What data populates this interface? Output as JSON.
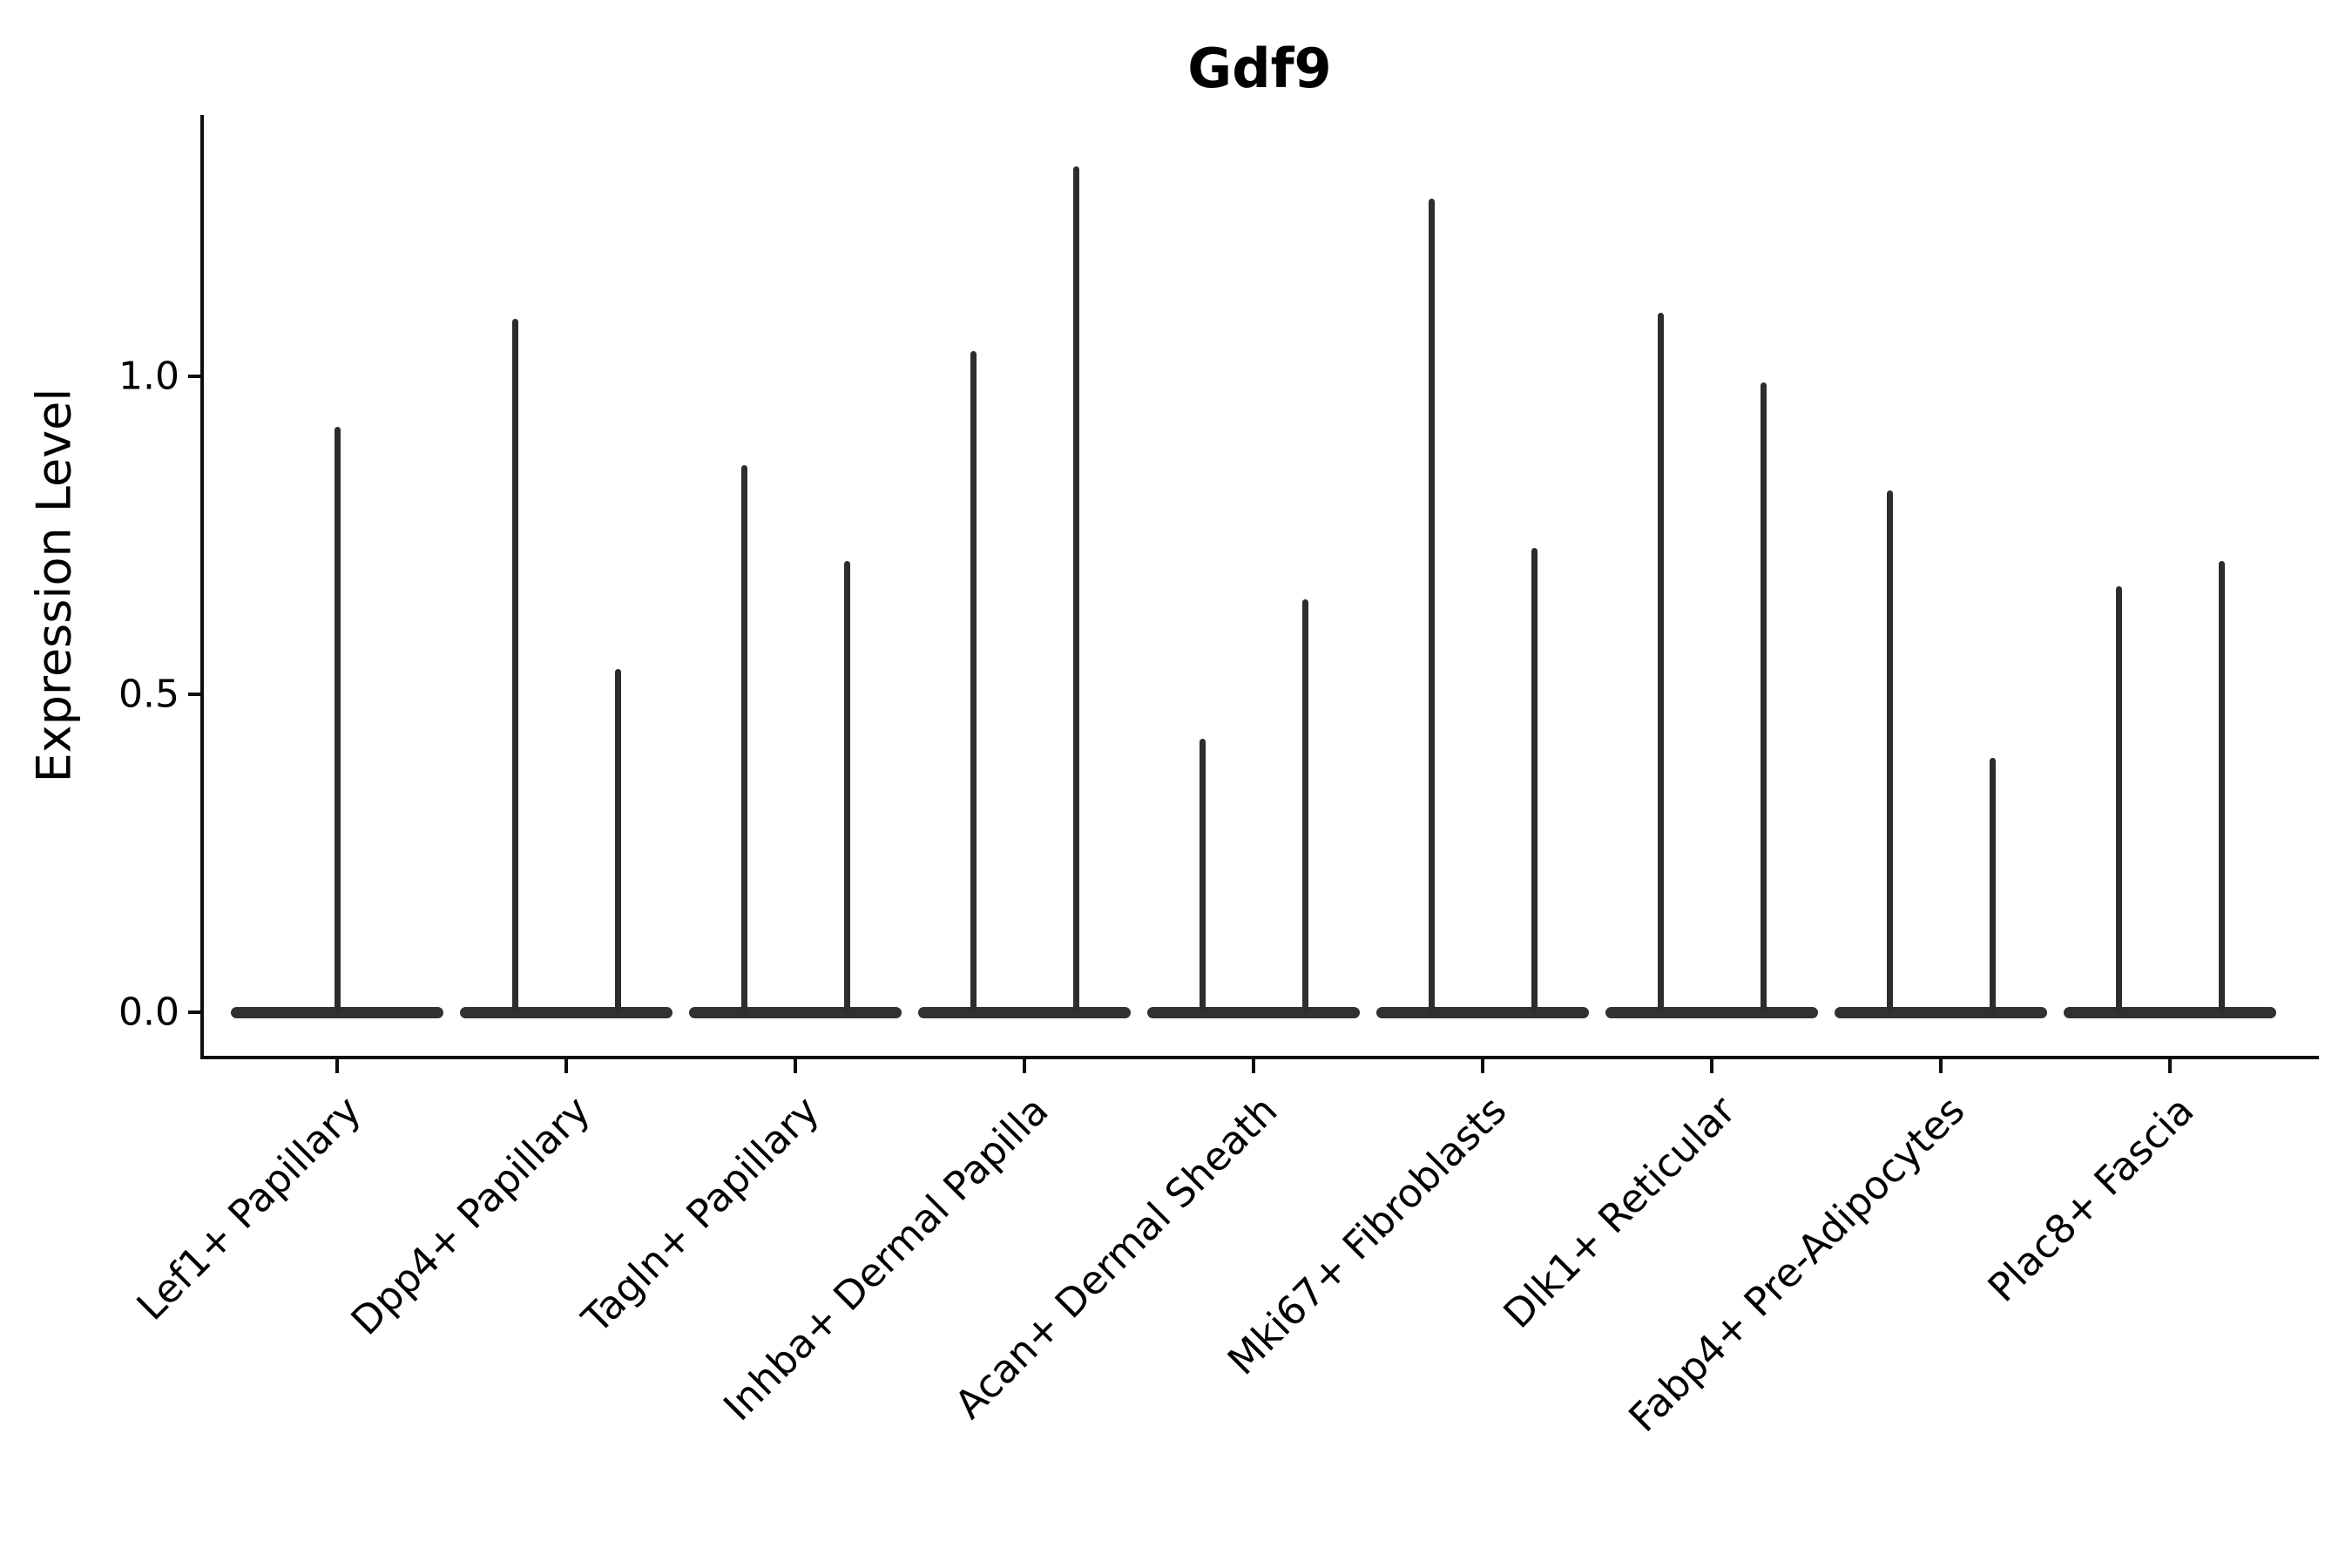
{
  "title": "Gdf9",
  "y_axis": {
    "label": "Expression Level",
    "tick_labels": [
      "0.0",
      "0.5",
      "1.0"
    ]
  },
  "colors": {
    "violin_fill": "#2d2d2d",
    "axis": "#0e0e0e",
    "text": "#000000",
    "background": "#ffffff"
  },
  "chart_data": {
    "type": "violin",
    "title": "Gdf9",
    "xlabel": "",
    "ylabel": "Expression Level",
    "yticks": [
      0.0,
      0.5,
      1.0
    ],
    "ylim": [
      -0.07,
      1.41
    ],
    "grid": false,
    "legend": "none",
    "description": "Violin plot of Gdf9 expression; distributions are concentrated at 0 with thin spikes reaching each group's maximum. Most categories show two adjacent violins (two spikes); the first category shows one.",
    "categories": [
      "Lef1+ Papillary",
      "Dpp4+ Papillary",
      "Tagln+ Papillary",
      "Inhba+ Dermal Papilla",
      "Acan+ Dermal Sheath",
      "Mki67+ Fibroblasts",
      "Dlk1+ Reticular",
      "Fabp4+ Pre-Adipocytes",
      "Plac8+ Fascia"
    ],
    "violin_max_values": [
      [
        0.92
      ],
      [
        1.09,
        0.54
      ],
      [
        0.86,
        0.71
      ],
      [
        1.04,
        1.33
      ],
      [
        0.43,
        0.65
      ],
      [
        1.28,
        0.73
      ],
      [
        1.1,
        0.99
      ],
      [
        0.82,
        0.4
      ],
      [
        0.67,
        0.71
      ]
    ],
    "baseline_value": 0.0
  }
}
